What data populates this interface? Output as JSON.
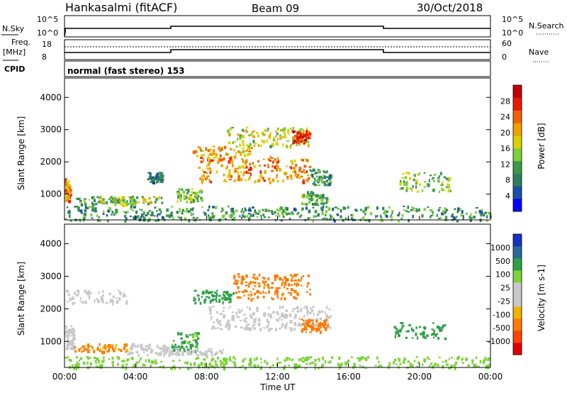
{
  "header": {
    "station": "Hankasalmi (fitACF)",
    "beam": "Beam 09",
    "date": "30/Oct/2018"
  },
  "param_panels": {
    "nsky_label": "N.Sky",
    "nsearch_label": "N.Search",
    "freq_label_1": "Freq.",
    "freq_label_2": "[MHz]",
    "nave_label": "Nave",
    "cpid_label": "CPID",
    "cpid_text": "normal (fast stereo) 153",
    "nsky_ticks": [
      "10^5",
      "10^0"
    ],
    "nsearch_ticks": [
      "10^5",
      "10^0"
    ],
    "freq_ticks": [
      "18",
      "8"
    ],
    "nave_ticks": [
      "60",
      "0"
    ]
  },
  "colors": {
    "power_scale": [
      "#0000ff",
      "#1e4ea8",
      "#2e7d5e",
      "#3c9a4a",
      "#7ccf3a",
      "#d8d200",
      "#f0a000",
      "#f06400",
      "#e81a00",
      "#c00000"
    ],
    "velocity_scale": [
      "#e00000",
      "#ff4400",
      "#ff7a00",
      "#f2b200",
      "#c8c8c8",
      "#c8c8c8",
      "#7bd23a",
      "#2fa04a",
      "#2a6a9a",
      "#1a30c0"
    ],
    "noise_gray": "#c8c8c8"
  },
  "chart_data": [
    {
      "type": "heatmap",
      "name": "power",
      "ylabel": "Slant Range [km]",
      "yticks": [
        "1000",
        "2000",
        "3000",
        "4000"
      ],
      "ylim": [
        200,
        4600
      ],
      "xlim": [
        0,
        24
      ],
      "colorbar_label": "Power [dB]",
      "colorbar_ticks": [
        "4",
        "8",
        "12",
        "16",
        "20",
        "24",
        "28"
      ],
      "colorbar_range": [
        0,
        32
      ],
      "blobs": [
        {
          "t0": 0.0,
          "t1": 0.3,
          "r0": 800,
          "r1": 1500,
          "v": 22
        },
        {
          "t0": 0.5,
          "t1": 4.0,
          "r0": 700,
          "r1": 950,
          "v": 12
        },
        {
          "t0": 2.0,
          "t1": 5.5,
          "r0": 700,
          "r1": 950,
          "v": 16
        },
        {
          "t0": 4.6,
          "t1": 5.5,
          "r0": 1400,
          "r1": 1700,
          "v": 8
        },
        {
          "t0": 6.3,
          "t1": 7.7,
          "r0": 800,
          "r1": 1200,
          "v": 14
        },
        {
          "t0": 7.2,
          "t1": 10.5,
          "r0": 2200,
          "r1": 2500,
          "v": 20
        },
        {
          "t0": 7.5,
          "t1": 13.8,
          "r0": 1400,
          "r1": 2200,
          "v": 22
        },
        {
          "t0": 9.0,
          "t1": 13.8,
          "r0": 2500,
          "r1": 3100,
          "v": 16
        },
        {
          "t0": 12.8,
          "t1": 13.8,
          "r0": 2600,
          "r1": 3000,
          "v": 26
        },
        {
          "t0": 13.3,
          "t1": 14.8,
          "r0": 700,
          "r1": 1100,
          "v": 12
        },
        {
          "t0": 13.8,
          "t1": 15.0,
          "r0": 1300,
          "r1": 1800,
          "v": 10
        },
        {
          "t0": 18.7,
          "t1": 21.7,
          "r0": 1100,
          "r1": 1700,
          "v": 14
        },
        {
          "t0": 0.0,
          "t1": 24.0,
          "r0": 200,
          "r1": 650,
          "v": 10
        }
      ]
    },
    {
      "type": "heatmap",
      "name": "velocity",
      "ylabel": "Slant Range [km]",
      "yticks": [
        "1000",
        "2000",
        "3000",
        "4000"
      ],
      "ylim": [
        200,
        4600
      ],
      "xlim": [
        0,
        24
      ],
      "xlabel": "Time UT",
      "xticks": [
        "00:00",
        "04:00",
        "08:00",
        "12:00",
        "16:00",
        "20:00",
        "00:00"
      ],
      "colorbar_label": "Velocity [m s-1]",
      "colorbar_ticks": [
        "-1000",
        "-500",
        "-100",
        "-25",
        "25",
        "100",
        "500",
        "1000"
      ],
      "blobs": [
        {
          "t0": 0.0,
          "t1": 0.5,
          "r0": 800,
          "r1": 1500,
          "v": 0
        },
        {
          "t0": 0.5,
          "t1": 3.5,
          "r0": 700,
          "r1": 950,
          "v": -120
        },
        {
          "t0": 3.5,
          "t1": 6.0,
          "r0": 600,
          "r1": 950,
          "v": 0
        },
        {
          "t0": 6.0,
          "t1": 7.5,
          "r0": 700,
          "r1": 1300,
          "v": 120
        },
        {
          "t0": 5.5,
          "t1": 9.0,
          "r0": 600,
          "r1": 800,
          "v": 0
        },
        {
          "t0": 8.0,
          "t1": 15.0,
          "r0": 1400,
          "r1": 2100,
          "v": 0
        },
        {
          "t0": 7.2,
          "t1": 9.5,
          "r0": 2200,
          "r1": 2600,
          "v": 200
        },
        {
          "t0": 9.5,
          "t1": 13.8,
          "r0": 2300,
          "r1": 3100,
          "v": -300
        },
        {
          "t0": 13.3,
          "t1": 14.8,
          "r0": 1300,
          "r1": 1700,
          "v": -200
        },
        {
          "t0": 0.0,
          "t1": 3.5,
          "r0": 2200,
          "r1": 2600,
          "v": 0
        },
        {
          "t0": 18.5,
          "t1": 21.5,
          "r0": 1100,
          "r1": 1600,
          "v": 300
        },
        {
          "t0": 0.0,
          "t1": 24.0,
          "r0": 200,
          "r1": 550,
          "v": 60
        }
      ]
    }
  ]
}
